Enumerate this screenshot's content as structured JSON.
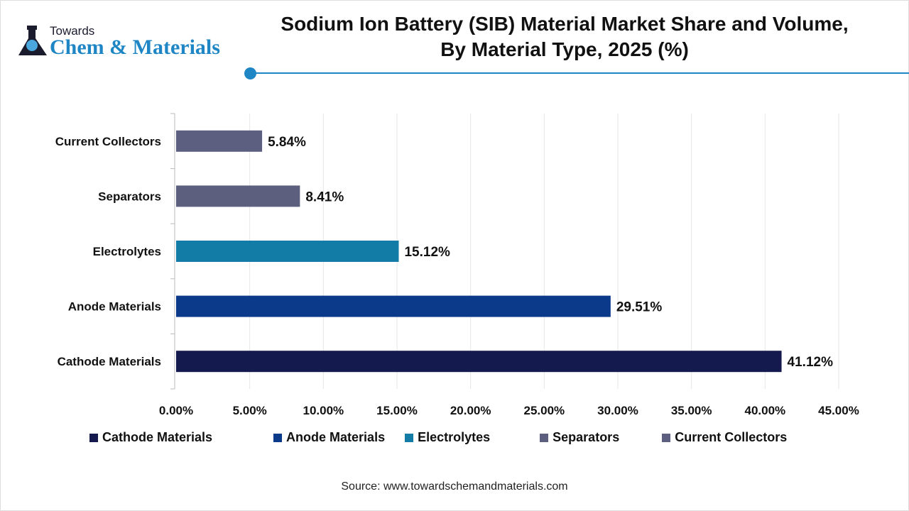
{
  "logo": {
    "top": "Towards",
    "main": "Chem & Materials"
  },
  "title": "Sodium Ion Battery (SIB) Material Market Share and Volume, By Material Type, 2025 (%)",
  "source": "Source: www.towardschemandmaterials.com",
  "chart_data": {
    "type": "bar",
    "orientation": "horizontal",
    "title": "Sodium Ion Battery (SIB) Material Market Share and Volume, By Material Type, 2025 (%)",
    "categories": [
      "Cathode Materials",
      "Anode Materials",
      "Electrolytes",
      "Separators",
      "Current Collectors"
    ],
    "values": [
      41.12,
      29.51,
      15.12,
      8.41,
      5.84
    ],
    "data_labels": [
      "41.12%",
      "29.51%",
      "15.12%",
      "8.41%",
      "5.84%"
    ],
    "colors": [
      "#141a4e",
      "#0c3a8a",
      "#137ca6",
      "#5c5f7d",
      "#5c5f80"
    ],
    "xlim": [
      0,
      45
    ],
    "xticks": [
      "0.00%",
      "5.00%",
      "10.00%",
      "15.00%",
      "20.00%",
      "25.00%",
      "30.00%",
      "35.00%",
      "40.00%",
      "45.00%"
    ],
    "grid": true,
    "legend": "bottom",
    "legend_entries": [
      "Cathode Materials",
      "Anode Materials",
      "Electrolytes",
      "Separators",
      "Current Collectors"
    ]
  }
}
